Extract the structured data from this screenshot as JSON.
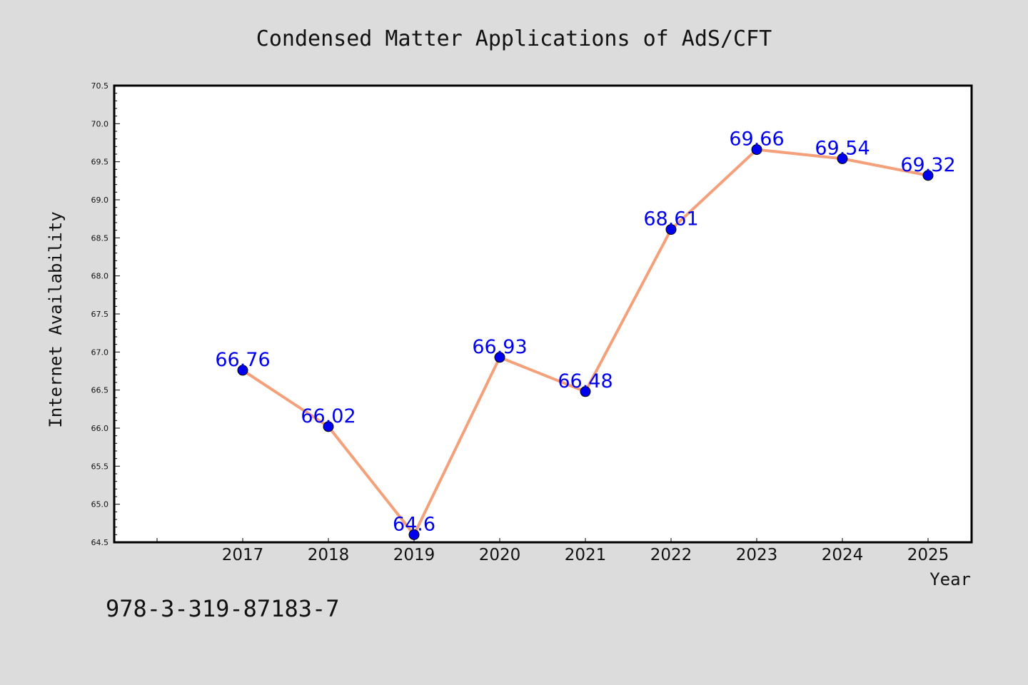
{
  "chart_data": {
    "type": "line",
    "title": "Condensed Matter Applications of AdS/CFT",
    "xlabel": "Year",
    "ylabel": "Internet Availability",
    "x": [
      "2017",
      "2018",
      "2019",
      "2020",
      "2021",
      "2022",
      "2023",
      "2024",
      "2025"
    ],
    "series": [
      {
        "values": [
          66.76,
          66.02,
          64.6,
          66.93,
          66.48,
          68.61,
          69.66,
          69.54,
          69.32
        ],
        "data_labels": [
          "66.76",
          "66.02",
          "64.6",
          "66.93",
          "66.48",
          "68.61",
          "69.66",
          "69.54",
          "69.32"
        ]
      }
    ],
    "ylim": [
      64.5,
      70.5
    ],
    "yticks": [
      "64.5",
      "65.0",
      "65.5",
      "66.0",
      "66.5",
      "67.0",
      "67.5",
      "68.0",
      "68.5",
      "69.0",
      "69.5",
      "70.0",
      "70.5"
    ],
    "grid": false,
    "legend": "none",
    "colors": {
      "line": "#f4a07a",
      "marker": "#0000ee",
      "data_label": "#0000ee",
      "plot_background": "#ffffff",
      "figure_background": "#dcdcdc"
    }
  },
  "footer": {
    "isbn": "978-3-319-87183-7"
  }
}
